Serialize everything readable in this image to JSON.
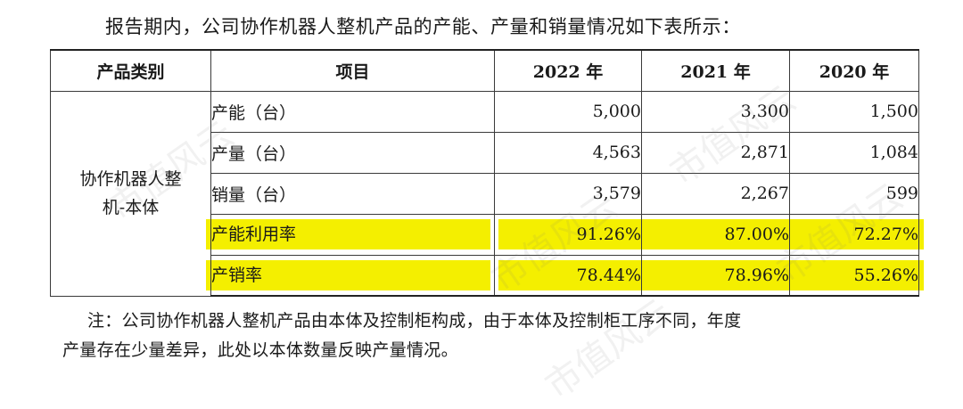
{
  "intro_text": "报告期内，公司协作机器人整机产品的产能、产量和销量情况如下表所示：",
  "table": {
    "headers": [
      "产品类别",
      "项目",
      "2022 年",
      "2021 年",
      "2020 年"
    ],
    "category": [
      "协作机器人整",
      "机-本体"
    ],
    "rows": [
      {
        "item": "产能（台）",
        "v2022": "5,000",
        "v2021": "3,300",
        "v2020": "1,500",
        "highlight": false
      },
      {
        "item": "产量（台）",
        "v2022": "4,563",
        "v2021": "2,871",
        "v2020": "1,084",
        "highlight": false
      },
      {
        "item": "销量（台）",
        "v2022": "3,579",
        "v2021": "2,267",
        "v2020": "599",
        "highlight": false
      },
      {
        "item": "产能利用率",
        "v2022": "91.26%",
        "v2021": "87.00%",
        "v2020": "72.27%",
        "highlight": true
      },
      {
        "item": "产销率",
        "v2022": "78.44%",
        "v2021": "78.96%",
        "v2020": "55.26%",
        "highlight": true
      }
    ]
  },
  "note": {
    "line1": "注：公司协作机器人整机产品由本体及控制柜构成，由于本体及控制柜工序不同，年度",
    "line2": "产量存在少量差异，此处以本体数量反映产量情况。"
  },
  "watermark": "市值风云",
  "colors": {
    "highlight": "#f4ef00",
    "text": "#1a1a1a"
  }
}
